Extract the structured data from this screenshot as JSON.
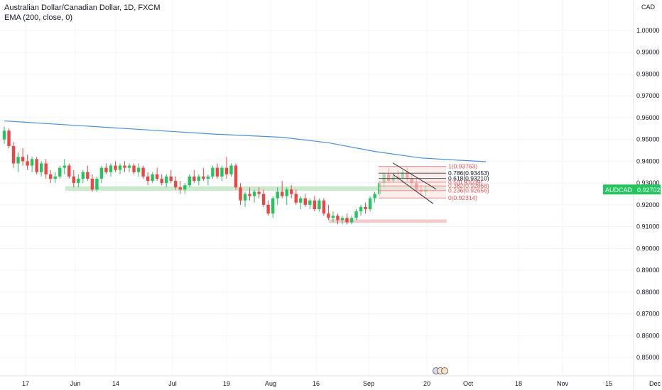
{
  "header": {
    "symbol_line": "Australian Dollar/Canadian Dollar, 1D, FXCM",
    "indicator_line": "EMA (200, close, 0)"
  },
  "currency_label": "CAD",
  "last_price_badge": {
    "symbol": "AUDCAD",
    "price": "0.92702",
    "color": "#22c55e"
  },
  "colors": {
    "up": "#22c55e",
    "down": "#ef4444",
    "ema": "#4a90d9",
    "support_zone": "#bfe6c3",
    "target_zone": "#f3c4c4",
    "fib_line": "#f08a8a",
    "fib_highlight_line": "#555555"
  },
  "chart_data": {
    "type": "candlestick",
    "title": "Australian Dollar/Canadian Dollar, 1D, FXCM",
    "y_ticks": [
      "1.00000",
      "0.99000",
      "0.98000",
      "0.97000",
      "0.96000",
      "0.95000",
      "0.94000",
      "0.93000",
      "0.92000",
      "0.91000",
      "0.90000",
      "0.89000",
      "0.88000",
      "0.87000",
      "0.86000",
      "0.85000"
    ],
    "ylim": [
      0.845,
      1.006
    ],
    "x_ticks": [
      "17",
      "Jun",
      "14",
      "Jul",
      "19",
      "Aug",
      "16",
      "Sep",
      "20",
      "Oct",
      "18",
      "Nov",
      "15",
      "Dec"
    ],
    "ema_200": [
      [
        0,
        0.9585
      ],
      [
        15,
        0.9565
      ],
      [
        30,
        0.9545
      ],
      [
        45,
        0.9525
      ],
      [
        60,
        0.951
      ],
      [
        70,
        0.9485
      ],
      [
        80,
        0.9445
      ],
      [
        90,
        0.9415
      ],
      [
        98,
        0.9405
      ],
      [
        104,
        0.9398
      ]
    ],
    "candles": [
      [
        0.95,
        0.956,
        0.948,
        0.954
      ],
      [
        0.954,
        0.955,
        0.946,
        0.947
      ],
      [
        0.947,
        0.949,
        0.937,
        0.939
      ],
      [
        0.939,
        0.944,
        0.935,
        0.942
      ],
      [
        0.942,
        0.946,
        0.938,
        0.94
      ],
      [
        0.94,
        0.943,
        0.936,
        0.938
      ],
      [
        0.938,
        0.942,
        0.935,
        0.941
      ],
      [
        0.941,
        0.942,
        0.934,
        0.935
      ],
      [
        0.935,
        0.94,
        0.933,
        0.939
      ],
      [
        0.939,
        0.941,
        0.932,
        0.934
      ],
      [
        0.934,
        0.936,
        0.93,
        0.932
      ],
      [
        0.932,
        0.935,
        0.93,
        0.933
      ],
      [
        0.933,
        0.938,
        0.932,
        0.937
      ],
      [
        0.937,
        0.941,
        0.934,
        0.938
      ],
      [
        0.938,
        0.939,
        0.932,
        0.933
      ],
      [
        0.933,
        0.936,
        0.928,
        0.93
      ],
      [
        0.93,
        0.934,
        0.928,
        0.932
      ],
      [
        0.932,
        0.936,
        0.93,
        0.935
      ],
      [
        0.935,
        0.938,
        0.931,
        0.932
      ],
      [
        0.932,
        0.934,
        0.926,
        0.927
      ],
      [
        0.927,
        0.933,
        0.926,
        0.932
      ],
      [
        0.932,
        0.938,
        0.93,
        0.937
      ],
      [
        0.937,
        0.939,
        0.934,
        0.935
      ],
      [
        0.935,
        0.939,
        0.933,
        0.938
      ],
      [
        0.938,
        0.94,
        0.935,
        0.936
      ],
      [
        0.936,
        0.939,
        0.934,
        0.938
      ],
      [
        0.938,
        0.94,
        0.935,
        0.937
      ],
      [
        0.937,
        0.939,
        0.935,
        0.938
      ],
      [
        0.938,
        0.939,
        0.934,
        0.935
      ],
      [
        0.935,
        0.939,
        0.933,
        0.937
      ],
      [
        0.937,
        0.938,
        0.932,
        0.933
      ],
      [
        0.933,
        0.935,
        0.929,
        0.931
      ],
      [
        0.931,
        0.935,
        0.93,
        0.934
      ],
      [
        0.934,
        0.937,
        0.931,
        0.932
      ],
      [
        0.932,
        0.934,
        0.929,
        0.93
      ],
      [
        0.93,
        0.934,
        0.928,
        0.933
      ],
      [
        0.933,
        0.936,
        0.93,
        0.931
      ],
      [
        0.931,
        0.933,
        0.927,
        0.928
      ],
      [
        0.928,
        0.931,
        0.925,
        0.927
      ],
      [
        0.927,
        0.93,
        0.925,
        0.929
      ],
      [
        0.929,
        0.934,
        0.928,
        0.933
      ],
      [
        0.933,
        0.936,
        0.93,
        0.931
      ],
      [
        0.931,
        0.934,
        0.929,
        0.933
      ],
      [
        0.933,
        0.937,
        0.931,
        0.932
      ],
      [
        0.932,
        0.934,
        0.929,
        0.933
      ],
      [
        0.933,
        0.938,
        0.932,
        0.937
      ],
      [
        0.937,
        0.939,
        0.932,
        0.933
      ],
      [
        0.933,
        0.938,
        0.931,
        0.937
      ],
      [
        0.937,
        0.942,
        0.932,
        0.934
      ],
      [
        0.934,
        0.939,
        0.933,
        0.938
      ],
      [
        0.938,
        0.939,
        0.927,
        0.928
      ],
      [
        0.928,
        0.93,
        0.92,
        0.922
      ],
      [
        0.922,
        0.926,
        0.919,
        0.925
      ],
      [
        0.925,
        0.928,
        0.922,
        0.924
      ],
      [
        0.924,
        0.927,
        0.921,
        0.926
      ],
      [
        0.926,
        0.928,
        0.923,
        0.925
      ],
      [
        0.925,
        0.927,
        0.919,
        0.92
      ],
      [
        0.92,
        0.922,
        0.915,
        0.916
      ],
      [
        0.916,
        0.924,
        0.914,
        0.923
      ],
      [
        0.923,
        0.928,
        0.92,
        0.926
      ],
      [
        0.926,
        0.931,
        0.923,
        0.924
      ],
      [
        0.924,
        0.928,
        0.92,
        0.927
      ],
      [
        0.927,
        0.929,
        0.923,
        0.925
      ],
      [
        0.925,
        0.927,
        0.92,
        0.921
      ],
      [
        0.921,
        0.924,
        0.918,
        0.923
      ],
      [
        0.923,
        0.925,
        0.919,
        0.92
      ],
      [
        0.92,
        0.923,
        0.918,
        0.922
      ],
      [
        0.922,
        0.924,
        0.917,
        0.918
      ],
      [
        0.918,
        0.923,
        0.917,
        0.922
      ],
      [
        0.922,
        0.923,
        0.915,
        0.916
      ],
      [
        0.916,
        0.92,
        0.913,
        0.914
      ],
      [
        0.914,
        0.917,
        0.912,
        0.915
      ],
      [
        0.915,
        0.916,
        0.911,
        0.913
      ],
      [
        0.913,
        0.915,
        0.911,
        0.914
      ],
      [
        0.914,
        0.916,
        0.911,
        0.912
      ],
      [
        0.912,
        0.915,
        0.911,
        0.914
      ],
      [
        0.914,
        0.918,
        0.913,
        0.917
      ],
      [
        0.917,
        0.92,
        0.915,
        0.919
      ],
      [
        0.919,
        0.921,
        0.916,
        0.918
      ],
      [
        0.918,
        0.924,
        0.917,
        0.923
      ],
      [
        0.923,
        0.926,
        0.921,
        0.925
      ],
      [
        0.925,
        0.931,
        0.924,
        0.93
      ],
      [
        0.93,
        0.935,
        0.928,
        0.934
      ],
      [
        0.934,
        0.937,
        0.93,
        0.931
      ],
      [
        0.931,
        0.935,
        0.93,
        0.933
      ],
      [
        0.933,
        0.936,
        0.931,
        0.932
      ],
      [
        0.932,
        0.936,
        0.93,
        0.935
      ],
      [
        0.935,
        0.937,
        0.931,
        0.932
      ],
      [
        0.932,
        0.934,
        0.929,
        0.93
      ],
      [
        0.93,
        0.932,
        0.926,
        0.927
      ],
      [
        0.927,
        0.929,
        0.924,
        0.926
      ],
      [
        0.926,
        0.929,
        0.924,
        0.927
      ]
    ],
    "fib_levels": [
      {
        "label": "1(0.93763)",
        "price": 0.93763,
        "highlight": false
      },
      {
        "label": "0.786(0.93453)",
        "price": 0.93453,
        "highlight": true
      },
      {
        "label": "0.618(0.93210)",
        "price": 0.9321,
        "highlight": true
      },
      {
        "label": "0.5(0.93039)",
        "price": 0.93039,
        "highlight": false
      },
      {
        "label": "0.382(0.92868)",
        "price": 0.92868,
        "highlight": false
      },
      {
        "label": "0.236(0.92656)",
        "price": 0.92656,
        "highlight": false
      },
      {
        "label": "0(0.92314)",
        "price": 0.92314,
        "highlight": false
      }
    ],
    "support_zone": [
      0.9265,
      0.9285
    ],
    "target_zone": [
      0.9118,
      0.9133
    ]
  }
}
